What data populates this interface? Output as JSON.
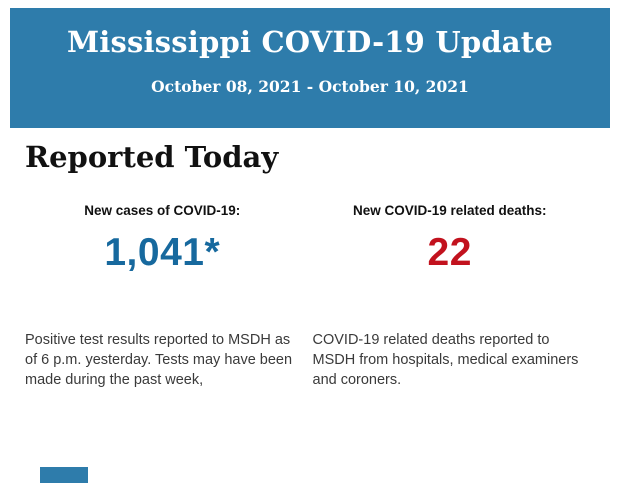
{
  "header": {
    "title": "Mississippi COVID-19 Update",
    "date_range": "October 08, 2021 - October 10, 2021",
    "background_color": "#2e7cab",
    "text_color": "#ffffff"
  },
  "main": {
    "heading": "Reported Today",
    "stats": {
      "cases": {
        "label": "New cases of COVID-19:",
        "value": "1,041*",
        "value_color": "#17699e",
        "description": "Positive test results reported to MSDH as of 6 p.m. yesterday. Tests may have been made during the past week,"
      },
      "deaths": {
        "label": "New COVID-19 related deaths:",
        "value": "22",
        "value_color": "#c2121e",
        "description": "COVID-19 related deaths reported to MSDH from hospitals, medical examiners and coroners."
      }
    }
  },
  "footer": {
    "partial_next_section_color": "#2e7cab"
  }
}
